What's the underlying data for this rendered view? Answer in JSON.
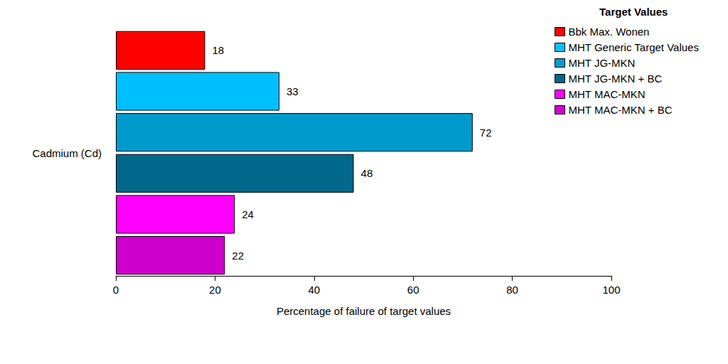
{
  "chart_data": {
    "type": "bar",
    "orientation": "horizontal",
    "legend_title": "Target Values",
    "xlabel": "Percentage of failure of target values",
    "categories": [
      "Cadmium (Cd)"
    ],
    "series": [
      {
        "name": "Bbk Max. Wonen",
        "color": "#ff0000",
        "values": [
          18
        ]
      },
      {
        "name": "MHT Generic Target Values",
        "color": "#00bfff",
        "values": [
          33
        ]
      },
      {
        "name": "MHT JG-MKN",
        "color": "#009acd",
        "values": [
          72
        ]
      },
      {
        "name": "MHT JG-MKN + BC",
        "color": "#00688b",
        "values": [
          48
        ]
      },
      {
        "name": "MHT MAC-MKN",
        "color": "#ff00ff",
        "values": [
          24
        ]
      },
      {
        "name": "MHT MAC-MKN + BC",
        "color": "#cd00cd",
        "values": [
          22
        ]
      }
    ],
    "xlim": [
      0,
      100
    ],
    "xticks": [
      0,
      20,
      40,
      60,
      80,
      100
    ],
    "grid": false,
    "legend": "top-right",
    "data_labels": true
  }
}
